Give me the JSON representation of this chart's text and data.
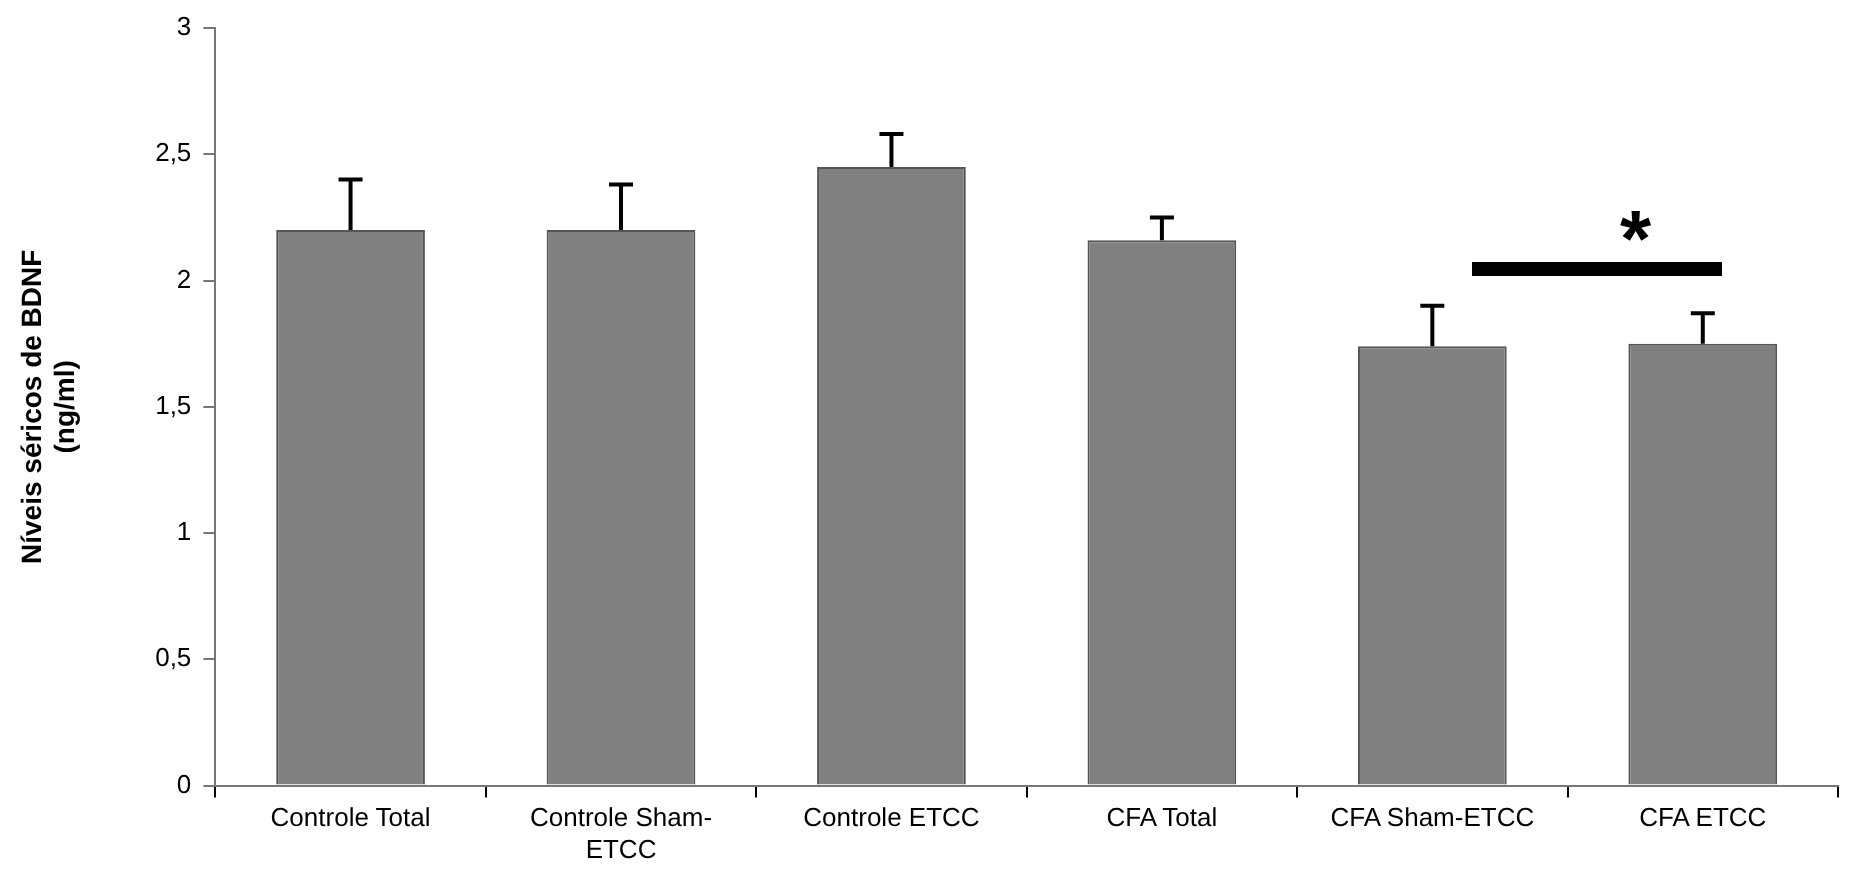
{
  "chart_data": {
    "type": "bar",
    "ylabel": "Níveis séricos de BDNF (ng/ml)",
    "categories": [
      "Controle Total",
      "Controle Sham-ETCC",
      "Controle ETCC",
      "CFA Total",
      "CFA Sham-ETCC",
      "CFA ETCC"
    ],
    "values": [
      2.2,
      2.2,
      2.45,
      2.16,
      1.74,
      1.75
    ],
    "errors": [
      [
        2.2,
        2.4
      ],
      [
        2.2,
        2.38
      ],
      [
        2.45,
        2.58
      ],
      [
        2.16,
        2.25
      ],
      [
        1.74,
        1.9
      ],
      [
        1.75,
        1.87
      ]
    ],
    "color": "#808080",
    "ylim": [
      0,
      3
    ],
    "yticks": [
      0,
      {
        "value": 0.5,
        "label": "0,5"
      },
      1,
      {
        "value": 1.5,
        "label": "1,5"
      },
      2,
      {
        "value": 2.5,
        "label": "2,5"
      },
      3
    ],
    "grid": false,
    "legend": false,
    "annotations": [
      "*"
    ]
  }
}
